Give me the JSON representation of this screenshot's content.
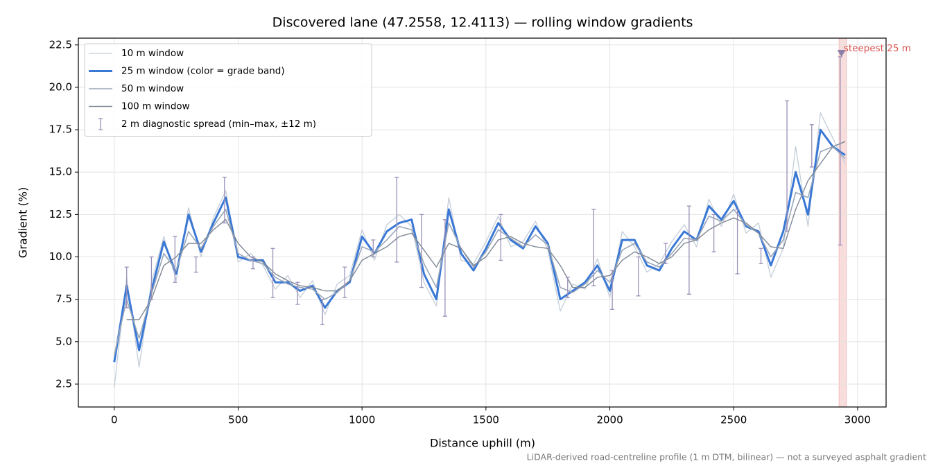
{
  "chart_data": {
    "type": "line",
    "title": "Discovered lane (47.2558, 12.4113) — rolling window gradients",
    "x_label": "Distance uphill (m)",
    "y_label": "Gradient (%)",
    "footnote": "LiDAR-derived road-centreline profile (1 m DTM, bilinear) — not a surveyed asphalt gradient",
    "xlim": [
      -145,
      3115
    ],
    "ylim": [
      1.15,
      22.9
    ],
    "xticks": [
      0,
      500,
      1000,
      1500,
      2000,
      2500,
      3000
    ],
    "yticks": [
      2.5,
      {
        "value": 5,
        "label": "5.0"
      },
      7.5,
      {
        "value": 10,
        "label": "10.0"
      },
      12.5,
      {
        "value": 15,
        "label": "15.0"
      },
      17.5,
      {
        "value": 20,
        "label": "20.0"
      },
      22.5
    ],
    "grid": true,
    "legend": "upper left",
    "x": [
      0,
      50,
      100,
      150,
      200,
      250,
      300,
      350,
      400,
      450,
      500,
      550,
      600,
      650,
      700,
      750,
      800,
      850,
      900,
      950,
      1000,
      1050,
      1100,
      1150,
      1200,
      1250,
      1300,
      1350,
      1400,
      1450,
      1500,
      1550,
      1600,
      1650,
      1700,
      1750,
      1800,
      1850,
      1900,
      1950,
      2000,
      2050,
      2100,
      2150,
      2200,
      2250,
      2300,
      2350,
      2400,
      2450,
      2500,
      2550,
      2600,
      2650,
      2700,
      2750,
      2800,
      2850,
      2900,
      2950
    ],
    "series": [
      {
        "name": "10 m window",
        "color": "#c3cdd8",
        "width": 1.3,
        "values": [
          2.3,
          8.8,
          3.5,
          8.5,
          11.2,
          8.6,
          12.9,
          10.0,
          12.3,
          13.9,
          9.7,
          10.2,
          9.5,
          8.1,
          8.9,
          7.6,
          8.6,
          6.6,
          8.4,
          8.9,
          11.6,
          9.8,
          11.9,
          12.5,
          11.8,
          8.5,
          7.1,
          13.5,
          9.8,
          9.6,
          10.9,
          12.4,
          10.6,
          10.9,
          12.1,
          10.4,
          6.8,
          8.4,
          8.1,
          9.9,
          7.6,
          11.5,
          10.6,
          9.1,
          9.6,
          10.9,
          11.9,
          10.6,
          13.4,
          11.8,
          13.7,
          11.4,
          12.0,
          8.8,
          10.5,
          16.5,
          11.8,
          18.5,
          17.0,
          15.5
        ]
      },
      {
        "name": "25 m window (color = grade band)",
        "color": "#3a78d6",
        "width": 3,
        "values": [
          3.8,
          8.3,
          4.5,
          8.0,
          10.9,
          9.0,
          12.5,
          10.3,
          12.0,
          13.5,
          10.0,
          9.8,
          9.8,
          8.5,
          8.5,
          8.0,
          8.3,
          7.0,
          8.0,
          8.5,
          11.2,
          10.2,
          11.5,
          12.0,
          12.2,
          9.0,
          7.5,
          12.8,
          10.2,
          9.2,
          10.5,
          12.0,
          11.0,
          10.5,
          11.8,
          10.8,
          7.5,
          8.0,
          8.5,
          9.5,
          8.0,
          11.0,
          11.0,
          9.5,
          9.2,
          10.5,
          11.5,
          11.0,
          13.0,
          12.2,
          13.3,
          11.8,
          11.5,
          9.5,
          11.5,
          15.0,
          12.5,
          17.5,
          16.5,
          16.0
        ]
      },
      {
        "name": "50 m window",
        "color": "#9aa7b8",
        "width": 1.6,
        "values": [
          4.2,
          7.5,
          5.2,
          7.8,
          10.2,
          9.2,
          11.5,
          10.5,
          11.8,
          12.8,
          10.2,
          9.8,
          9.6,
          8.8,
          8.4,
          8.2,
          8.1,
          7.5,
          7.9,
          8.6,
          10.6,
          10.3,
          11.0,
          11.8,
          11.6,
          9.6,
          8.2,
          12.0,
          10.5,
          9.4,
          10.3,
          11.6,
          11.1,
          10.6,
          11.3,
          10.7,
          8.2,
          7.9,
          8.4,
          9.2,
          8.5,
          10.4,
          10.8,
          9.7,
          9.4,
          10.2,
          11.1,
          11.0,
          12.4,
          12.1,
          12.8,
          11.9,
          11.4,
          10.0,
          11.0,
          13.8,
          13.5,
          16.2,
          16.5,
          15.8
        ]
      },
      {
        "name": "100 m window",
        "color": "#7f8895",
        "width": 1.4,
        "values": [
          null,
          6.3,
          6.3,
          7.5,
          9.5,
          10.0,
          10.8,
          10.8,
          11.6,
          12.2,
          10.8,
          10.0,
          9.7,
          9.0,
          8.6,
          8.3,
          8.2,
          8.0,
          8.0,
          8.6,
          9.8,
          10.2,
          10.6,
          11.2,
          11.4,
          10.4,
          9.4,
          10.8,
          10.5,
          9.5,
          10.0,
          11.0,
          11.2,
          10.8,
          10.6,
          10.5,
          9.5,
          8.2,
          8.2,
          8.8,
          8.9,
          9.8,
          10.3,
          10.0,
          9.6,
          10.0,
          10.8,
          11.0,
          11.6,
          12.0,
          12.3,
          12.0,
          11.4,
          10.6,
          10.5,
          12.8,
          14.5,
          15.5,
          16.5,
          16.8
        ]
      }
    ],
    "error_bars": {
      "name": "2 m diagnostic spread (min–max, ±12 m)",
      "color": "#9a8fb8",
      "x": [
        50,
        150,
        245,
        330,
        445,
        560,
        640,
        740,
        840,
        930,
        1045,
        1140,
        1240,
        1335,
        1560,
        1830,
        1935,
        2010,
        2115,
        2225,
        2320,
        2420,
        2515,
        2610,
        2715,
        2815,
        2930
      ],
      "min": [
        7.0,
        7.5,
        8.5,
        9.1,
        12.0,
        9.3,
        7.6,
        7.2,
        6.0,
        7.6,
        10.0,
        9.7,
        8.2,
        6.5,
        9.8,
        7.6,
        8.3,
        6.9,
        7.7,
        9.6,
        7.8,
        10.3,
        9.0,
        9.6,
        11.5,
        15.3,
        10.7
      ],
      "max": [
        9.4,
        10.0,
        11.2,
        10.0,
        14.7,
        10.0,
        10.5,
        8.5,
        7.5,
        9.4,
        11.0,
        14.7,
        12.5,
        12.2,
        12.5,
        8.8,
        12.8,
        9.2,
        10.0,
        10.8,
        13.0,
        12.5,
        12.8,
        10.5,
        19.2,
        17.8,
        21.8
      ]
    },
    "steepest": {
      "label": "steepest 25 m",
      "x_range": [
        2925,
        2955
      ],
      "x": 2935,
      "y": 22,
      "color": "#d9534f"
    }
  }
}
